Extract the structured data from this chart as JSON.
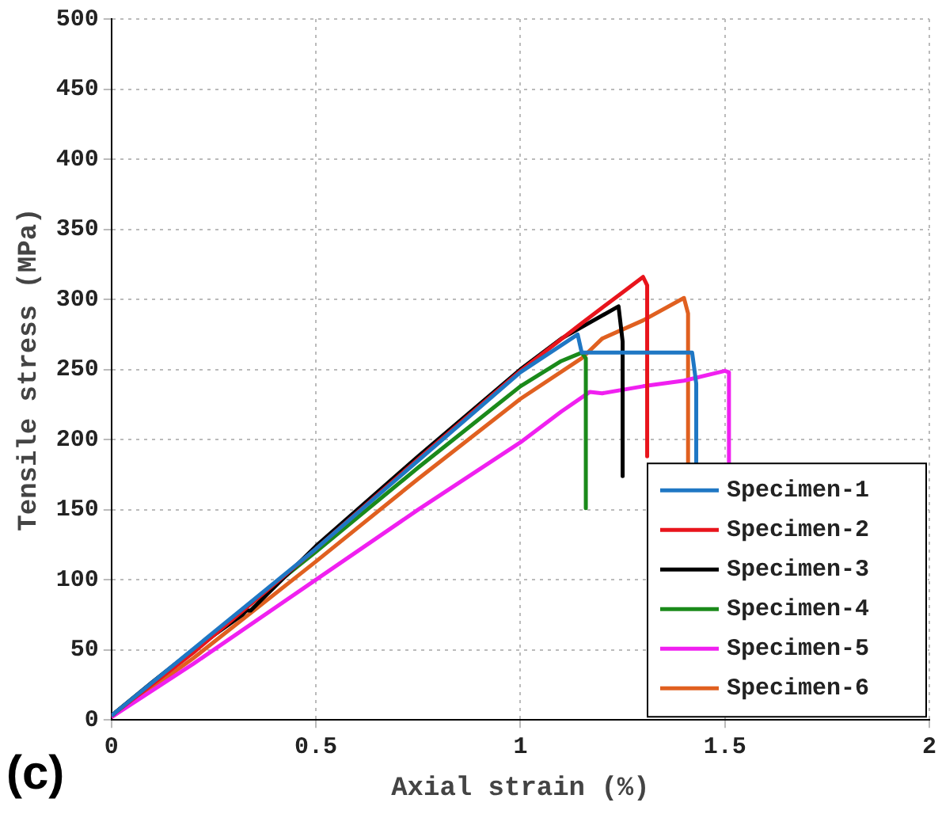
{
  "chart_data": {
    "type": "line",
    "xlabel": "Axial strain (%)",
    "ylabel": "Tensile stress (MPa)",
    "annotations": [
      "(c)"
    ],
    "xlim": [
      0,
      2
    ],
    "xticks": [
      0,
      0.5,
      1,
      1.5,
      2
    ],
    "ylim": [
      0,
      500
    ],
    "yticks": [
      0,
      50,
      100,
      150,
      200,
      250,
      300,
      350,
      400,
      450,
      500
    ],
    "grid": true,
    "legend": "bottom right",
    "marker": "none",
    "line_style": "solid",
    "series": [
      {
        "name": "Specimen-1",
        "color": "#1f77c4",
        "x": [
          0,
          0.5,
          1.0,
          1.14,
          1.15,
          1.42,
          1.43,
          1.43
        ],
        "values": [
          3,
          122,
          248,
          275,
          262,
          262,
          240,
          182
        ]
      },
      {
        "name": "Specimen-2",
        "color": "#e8141c",
        "x": [
          0,
          0.2,
          0.5,
          0.75,
          1.0,
          1.15,
          1.25,
          1.3,
          1.31,
          1.31
        ],
        "values": [
          3,
          48,
          122,
          186,
          249,
          283,
          305,
          316,
          310,
          188
        ]
      },
      {
        "name": "Specimen-3",
        "color": "#000000",
        "x": [
          0,
          0.1,
          0.2,
          0.32,
          0.33,
          0.34,
          0.5,
          0.75,
          1.0,
          1.1,
          1.24,
          1.25,
          1.25
        ],
        "values": [
          3,
          27,
          50,
          75,
          78,
          78,
          124,
          188,
          250,
          272,
          295,
          270,
          174
        ]
      },
      {
        "name": "Specimen-4",
        "color": "#1a8a1a",
        "x": [
          0,
          0.2,
          0.5,
          0.75,
          1.0,
          1.1,
          1.15,
          1.16,
          1.16
        ],
        "values": [
          3,
          50,
          120,
          180,
          238,
          256,
          262,
          258,
          151
        ]
      },
      {
        "name": "Specimen-5",
        "color": "#f020f0",
        "x": [
          0,
          0.2,
          0.5,
          0.75,
          1.0,
          1.1,
          1.17,
          1.2,
          1.3,
          1.4,
          1.5,
          1.51,
          1.51
        ],
        "values": [
          2,
          40,
          100,
          150,
          198,
          220,
          234,
          233,
          238,
          242,
          249,
          248,
          182
        ]
      },
      {
        "name": "Specimen-6",
        "color": "#e06020",
        "x": [
          0,
          0.2,
          0.5,
          0.75,
          1.0,
          1.15,
          1.2,
          1.3,
          1.4,
          1.41,
          1.41
        ],
        "values": [
          2,
          44,
          113,
          172,
          229,
          258,
          272,
          285,
          301,
          290,
          182
        ]
      }
    ]
  }
}
